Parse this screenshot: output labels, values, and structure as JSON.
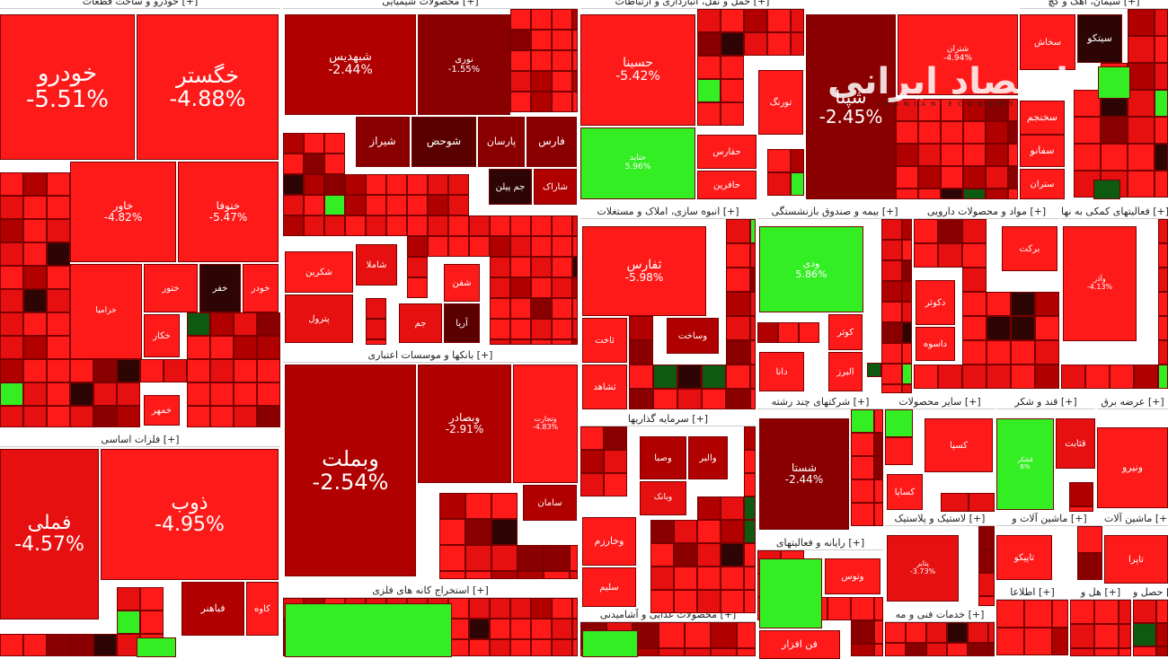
{
  "chart_data": {
    "type": "treemap",
    "sectors": [
      {
        "name": "خودرو و ساخت قطعات [+]"
      },
      {
        "name": "محصولات شیمیایی [+]"
      },
      {
        "name": "حمل و نقل، انبارداری و ارتباطات [+]"
      },
      {
        "name": "عرضه برق [+]"
      },
      {
        "name": "سیمان، آهک و گچ [+]"
      },
      {
        "name": "فلزات اساسی [+]"
      },
      {
        "name": "بانکها و موسسات اعتباری [+]"
      },
      {
        "name": "استخراج کانه های فلزی [+]"
      },
      {
        "name": "انبوه سازی، املاک و مستغلات [+]"
      },
      {
        "name": "بیمه و صندوق بازنشستگی [+]"
      },
      {
        "name": "مواد و محصولات دارویی [+]"
      },
      {
        "name": "فعالیتهای کمکی به نها [+]"
      },
      {
        "name": "سرمایه گذاریها [+]"
      },
      {
        "name": "شرکتهای چند رشته [+]"
      },
      {
        "name": "سایر محصولات [+]"
      },
      {
        "name": "قند و شکر [+]"
      },
      {
        "name": "رایانه و فعالیتهای [+]"
      },
      {
        "name": "لاستیک و پلاستیک [+]"
      },
      {
        "name": "ماشین آلات و [+]"
      },
      {
        "name": "ماشین آلات [+]"
      },
      {
        "name": "محصولات غذایی و آشامیدنی [+]"
      },
      {
        "name": "خدمات فنی و مه [+]"
      },
      {
        "name": "اطلاعا [+]"
      },
      {
        "name": "هل و [+]"
      },
      {
        "name": "حصل و [+]"
      }
    ],
    "tiles": [
      {
        "symbol": "خودرو",
        "change": "-5.51%",
        "sector": "خودرو و ساخت قطعات [+]"
      },
      {
        "symbol": "خگستر",
        "change": "-4.88%",
        "sector": "خودرو و ساخت قطعات [+]"
      },
      {
        "symbol": "خاور",
        "change": "-4.82%",
        "sector": "خودرو و ساخت قطعات [+]"
      },
      {
        "symbol": "خنوفا",
        "change": "-5.47%",
        "sector": "خودرو و ساخت قطعات [+]"
      },
      {
        "symbol": "خزامیا",
        "change": "",
        "sector": "خودرو و ساخت قطعات [+]"
      },
      {
        "symbol": "خفر",
        "change": "",
        "sector": "خودرو و ساخت قطعات [+]"
      },
      {
        "symbol": "خودر",
        "change": "",
        "sector": "خودرو و ساخت قطعات [+]"
      },
      {
        "symbol": "ختور",
        "change": "",
        "sector": "خودرو و ساخت قطعات [+]"
      },
      {
        "symbol": "خکار",
        "change": "",
        "sector": "خودرو و ساخت قطعات [+]"
      },
      {
        "symbol": "خمهر",
        "change": "",
        "sector": "خودرو و ساخت قطعات [+]"
      },
      {
        "symbol": "شبهدیس",
        "change": "-2.44%",
        "sector": "محصولات شیمیایی [+]"
      },
      {
        "symbol": "نوری",
        "change": "-1.55%",
        "sector": "محصولات شیمیایی [+]"
      },
      {
        "symbol": "شیراز",
        "change": "",
        "sector": "محصولات شیمیایی [+]"
      },
      {
        "symbol": "شوحض",
        "change": "",
        "sector": "محصولات شیمیایی [+]"
      },
      {
        "symbol": "پارسان",
        "change": "",
        "sector": "محصولات شیمیایی [+]"
      },
      {
        "symbol": "فارس",
        "change": "",
        "sector": "محصولات شیمیایی [+]"
      },
      {
        "symbol": "شاراک",
        "change": "",
        "sector": "محصولات شیمیایی [+]"
      },
      {
        "symbol": "جم پیلن",
        "change": "",
        "sector": "محصولات شیمیایی [+]"
      },
      {
        "symbol": "شکربن",
        "change": "",
        "sector": "محصولات شیمیایی [+]"
      },
      {
        "symbol": "شاملا",
        "change": "",
        "sector": "محصولات شیمیایی [+]"
      },
      {
        "symbol": "پترول",
        "change": "",
        "sector": "محصولات شیمیایی [+]"
      },
      {
        "symbol": "شفن",
        "change": "",
        "sector": "محصولات شیمیایی [+]"
      },
      {
        "symbol": "جم",
        "change": "",
        "sector": "محصولات شیمیایی [+]"
      },
      {
        "symbol": "آریا",
        "change": "",
        "sector": "محصولات شیمیایی [+]"
      },
      {
        "symbol": "حسینا",
        "change": "-5.42%",
        "sector": "حمل و نقل، انبارداری و ارتباطات [+]"
      },
      {
        "symbol": "حتاید",
        "change": "5.96%",
        "sector": "حمل و نقل، انبارداری و ارتباطات [+]"
      },
      {
        "symbol": "حفارس",
        "change": "",
        "sector": "حمل و نقل، انبارداری و ارتباطات [+]"
      },
      {
        "symbol": "حافرین",
        "change": "",
        "sector": "حمل و نقل، انبارداری و ارتباطات [+]"
      },
      {
        "symbol": "تورنگ",
        "change": "",
        "sector": "حمل و نقل، انبارداری و ارتباطات [+]"
      },
      {
        "symbol": "شپنا",
        "change": "-2.45%",
        "sector": "عرضه برق [+]"
      },
      {
        "symbol": "شتران",
        "change": "-4.94%",
        "sector": "عرضه برق [+]"
      },
      {
        "symbol": "سخاش",
        "change": "",
        "sector": "سیمان، آهک و گچ [+]"
      },
      {
        "symbol": "سیتکو",
        "change": "",
        "sector": "سیمان، آهک و گچ [+]"
      },
      {
        "symbol": "سخنجم",
        "change": "",
        "sector": "سیمان، آهک و گچ [+]"
      },
      {
        "symbol": "سفانو",
        "change": "",
        "sector": "سیمان، آهک و گچ [+]"
      },
      {
        "symbol": "ستران",
        "change": "",
        "sector": "سیمان، آهک و گچ [+]"
      },
      {
        "symbol": "فملی",
        "change": "-4.57%",
        "sector": "فلزات اساسی [+]"
      },
      {
        "symbol": "ذوب",
        "change": "-4.95%",
        "sector": "فلزات اساسی [+]"
      },
      {
        "symbol": "فباهنر",
        "change": "",
        "sector": "فلزات اساسی [+]"
      },
      {
        "symbol": "کاوه",
        "change": "",
        "sector": "فلزات اساسی [+]"
      },
      {
        "symbol": "وبملت",
        "change": "-2.54%",
        "sector": "بانکها و موسسات اعتباری [+]"
      },
      {
        "symbol": "وبصادر",
        "change": "-2.91%",
        "sector": "بانکها و موسسات اعتباری [+]"
      },
      {
        "symbol": "وتجارت",
        "change": "-4.83%",
        "sector": "بانکها و موسسات اعتباری [+]"
      },
      {
        "symbol": "سامان",
        "change": "",
        "sector": "بانکها و موسسات اعتباری [+]"
      },
      {
        "symbol": "ثفارس",
        "change": "-5.98%",
        "sector": "انبوه سازی، املاک و مستغلات [+]"
      },
      {
        "symbol": "ثاخت",
        "change": "",
        "sector": "انبوه سازی، املاک و مستغلات [+]"
      },
      {
        "symbol": "وساخت",
        "change": "",
        "sector": "انبوه سازی، املاک و مستغلات [+]"
      },
      {
        "symbol": "ثشاهد",
        "change": "",
        "sector": "انبوه سازی، املاک و مستغلات [+]"
      },
      {
        "symbol": "ودی",
        "change": "5.86%",
        "sector": "بیمه و صندوق بازنشستگی [+]"
      },
      {
        "symbol": "کوثر",
        "change": "",
        "sector": "بیمه و صندوق بازنشستگی [+]"
      },
      {
        "symbol": "البرز",
        "change": "",
        "sector": "بیمه و صندوق بازنشستگی [+]"
      },
      {
        "symbol": "دانا",
        "change": "",
        "sector": "بیمه و صندوق بازنشستگی [+]"
      },
      {
        "symbol": "برکت",
        "change": "",
        "sector": "مواد و محصولات دارویی [+]"
      },
      {
        "symbol": "دکوثر",
        "change": "",
        "sector": "مواد و محصولات دارویی [+]"
      },
      {
        "symbol": "داسوه",
        "change": "",
        "sector": "مواد و محصولات دارویی [+]"
      },
      {
        "symbol": "وآذر",
        "change": "-4.13%",
        "sector": "فعالیتهای کمکی به نها [+]"
      },
      {
        "symbol": "وصبا",
        "change": "",
        "sector": "سرمایه گذاریها [+]"
      },
      {
        "symbol": "والبر",
        "change": "",
        "sector": "سرمایه گذاریها [+]"
      },
      {
        "symbol": "وبانک",
        "change": "",
        "sector": "سرمایه گذاریها [+]"
      },
      {
        "symbol": "وخارزم",
        "change": "",
        "sector": "سرمایه گذاریها [+]"
      },
      {
        "symbol": "سلیم",
        "change": "",
        "sector": "سرمایه گذاریها [+]"
      },
      {
        "symbol": "شستا",
        "change": "-2.44%",
        "sector": "شرکتهای چند رشته [+]"
      },
      {
        "symbol": "کسپا",
        "change": "",
        "sector": "سایر محصولات [+]"
      },
      {
        "symbol": "کساپا",
        "change": "",
        "sector": "سایر محصولات [+]"
      },
      {
        "symbol": "قثابت",
        "change": "",
        "sector": "قند و شکر [+]"
      },
      {
        "symbol": "قشکر",
        "change": "6%",
        "sector": "قند و شکر [+]"
      },
      {
        "symbol": "تاپیکو",
        "change": "",
        "sector": "لاستیک و پلاستیک [+]"
      },
      {
        "symbol": "پتایر",
        "change": "-3.73%",
        "sector": "لاستیک و پلاستیک [+]"
      },
      {
        "symbol": "تاپرا",
        "change": "",
        "sector": "ماشین آلات [+]"
      },
      {
        "symbol": "وتوس",
        "change": "",
        "sector": "رایانه و فعالیتهای [+]"
      },
      {
        "symbol": "فن افزار",
        "change": "",
        "sector": "رایانه و فعالیتهای [+]"
      },
      {
        "symbol": "ونیرو",
        "change": "",
        "sector": "عرضه برق [+]"
      }
    ]
  },
  "watermark": {
    "title": "اقتصاد ایرانی",
    "subtitle": "IRANIAN ECONOMY"
  },
  "colors": {
    "bright_red": "#ff1a1a",
    "red": "#e61010",
    "dark_red": "#b00000",
    "darker_red": "#8a0000",
    "maroon": "#5a0000",
    "very_dark": "#2e0505",
    "green": "#33ee22",
    "dark_green": "#0d5a10"
  }
}
